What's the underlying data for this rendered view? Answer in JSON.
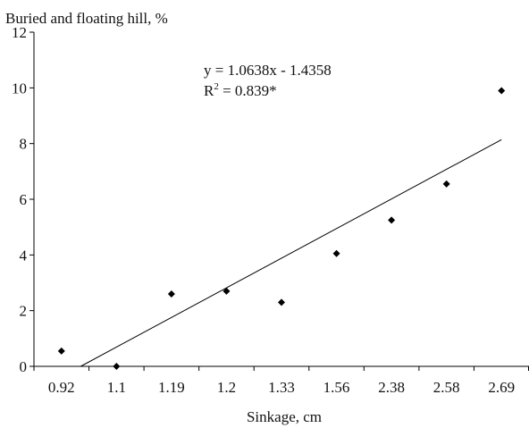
{
  "chart_data": {
    "type": "scatter",
    "title": "",
    "ylabel": "Buried and floating hill, %",
    "xlabel": "Sinkage, cm",
    "categories": [
      "0.92",
      "1.1",
      "1.19",
      "1.2",
      "1.33",
      "1.56",
      "2.38",
      "2.58",
      "2.69"
    ],
    "series": [
      {
        "values": [
          0.55,
          0.0,
          2.6,
          2.7,
          2.3,
          4.05,
          5.25,
          6.55,
          9.9
        ]
      }
    ],
    "trendline": {
      "slope": 1.0638,
      "intercept": -1.4358,
      "equation": "y = 1.0638x - 1.4358",
      "r2_prefix": "R",
      "r2_sup": "2",
      "r2_value": " = 0.839*"
    },
    "ylim": [
      0,
      12
    ],
    "yticks": [
      0,
      2,
      4,
      6,
      8,
      10,
      12
    ],
    "grid": false,
    "legend": "none",
    "marker": "diamond",
    "color": "#000000"
  }
}
